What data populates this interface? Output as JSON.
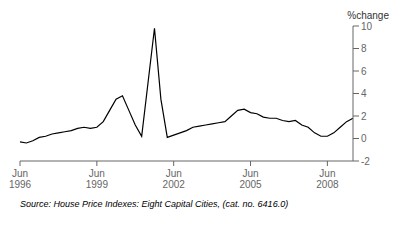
{
  "chart_data": {
    "type": "line",
    "y_label": "%change",
    "source": "Source: House Price Indexes: Eight Capital Cities,  (cat. no.  6416.0)",
    "categories": [
      "Jun\n1996",
      null,
      null,
      null,
      null,
      null,
      null,
      null,
      null,
      null,
      null,
      null,
      "Jun\n1999",
      null,
      null,
      null,
      null,
      null,
      null,
      null,
      null,
      null,
      null,
      null,
      "Jun\n2002",
      null,
      null,
      null,
      null,
      null,
      null,
      null,
      null,
      null,
      null,
      null,
      "Jun\n2005",
      null,
      null,
      null,
      null,
      null,
      null,
      null,
      null,
      null,
      null,
      null,
      "Jun\n2008",
      null,
      null,
      null,
      null
    ],
    "values": [
      -0.3,
      -0.4,
      -0.2,
      0.1,
      0.2,
      0.4,
      0.5,
      0.6,
      0.7,
      0.9,
      1.0,
      0.9,
      1.0,
      1.5,
      2.5,
      3.5,
      3.8,
      2.5,
      1.2,
      0.2,
      5.0,
      9.8,
      3.5,
      0.1,
      0.3,
      0.5,
      0.7,
      1.0,
      1.1,
      1.2,
      1.3,
      1.4,
      1.5,
      2.0,
      2.5,
      2.6,
      2.3,
      2.2,
      1.9,
      1.8,
      1.8,
      1.6,
      1.5,
      1.6,
      1.2,
      1.0,
      0.5,
      0.2,
      0.2,
      0.5,
      1.0,
      1.5,
      1.8
    ],
    "color": "#000000",
    "ylim": [
      -2,
      10
    ],
    "yticks": [
      -2,
      0,
      2,
      4,
      6,
      8,
      10
    ],
    "grid": false
  }
}
